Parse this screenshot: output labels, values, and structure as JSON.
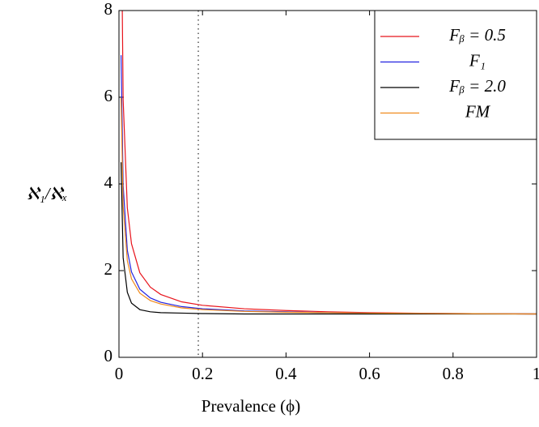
{
  "chart_data": {
    "type": "line",
    "xlabel": "Prevalence (ϕ)",
    "ylabel": "ℵ₁/ℵₓ",
    "x": [
      0.005,
      0.01,
      0.02,
      0.03,
      0.05,
      0.075,
      0.1,
      0.15,
      0.2,
      0.3,
      0.4,
      0.5,
      0.6,
      0.8,
      1.0
    ],
    "series": [
      {
        "name": "Fᵦ = 0.5",
        "color": "#e8141c",
        "values": [
          10.95,
          5.95,
          3.45,
          2.62,
          1.95,
          1.62,
          1.45,
          1.28,
          1.2,
          1.12,
          1.08,
          1.05,
          1.03,
          1.01,
          1.0
        ]
      },
      {
        "name": "F₁",
        "color": "#2222e0",
        "values": [
          6.97,
          3.97,
          2.47,
          1.97,
          1.57,
          1.37,
          1.27,
          1.17,
          1.12,
          1.07,
          1.05,
          1.03,
          1.02,
          1.01,
          1.0
        ]
      },
      {
        "name": "Fᵦ = 2.0",
        "color": "#000000",
        "values": [
          4.5,
          2.3,
          1.5,
          1.25,
          1.1,
          1.05,
          1.03,
          1.02,
          1.01,
          1.0,
          1.0,
          1.0,
          1.0,
          1.0,
          1.0
        ]
      },
      {
        "name": "FM",
        "color": "#f08a1c",
        "values": [
          5.98,
          3.48,
          2.23,
          1.81,
          1.48,
          1.31,
          1.23,
          1.14,
          1.1,
          1.06,
          1.04,
          1.03,
          1.02,
          1.01,
          1.0
        ]
      }
    ],
    "reference_x": 0.19,
    "xlim": [
      0,
      1
    ],
    "xticks": [
      0,
      0.2,
      0.4,
      0.6,
      0.8,
      1
    ],
    "ylim": [
      0,
      8
    ],
    "yticks": [
      0,
      2,
      4,
      6,
      8
    ],
    "grid": false,
    "legend": "top-right"
  }
}
